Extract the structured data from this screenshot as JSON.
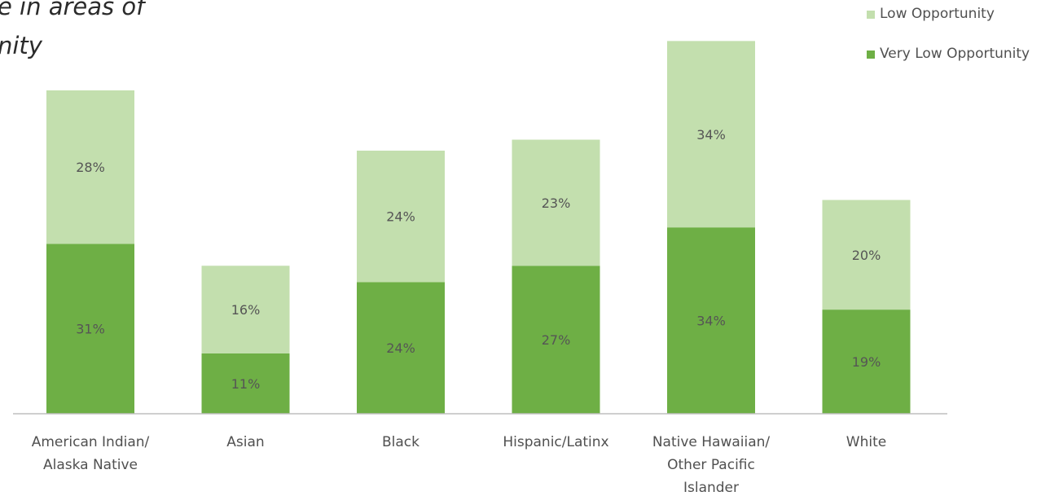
{
  "title_lines": [
    "e in areas of",
    "nity"
  ],
  "colors": {
    "low_opportunity": "#c3dfae",
    "very_low_opportunity": "#6eaf45",
    "axis": "#bfbfbf"
  },
  "chart_data": {
    "type": "bar",
    "stacked": true,
    "title": "e in areas of nity",
    "xlabel": "",
    "ylabel": "",
    "ylim": [
      0,
      70
    ],
    "grid": false,
    "legend_position": "top-right",
    "categories": [
      [
        "American Indian/",
        "Alaska Native"
      ],
      [
        "Asian"
      ],
      [
        "Black"
      ],
      [
        "Hispanic/Latinx"
      ],
      [
        "Native Hawaiian/",
        "Other Pacific",
        "Islander"
      ],
      [
        "White"
      ]
    ],
    "series": [
      {
        "name": "Very Low Opportunity",
        "values": [
          31,
          11,
          24,
          27,
          34,
          19
        ],
        "labels": [
          "31%",
          "11%",
          "24%",
          "27%",
          "34%",
          "19%"
        ]
      },
      {
        "name": "Low Opportunity",
        "values": [
          28,
          16,
          24,
          23,
          34,
          20
        ],
        "labels": [
          "28%",
          "16%",
          "24%",
          "23%",
          "34%",
          "20%"
        ]
      }
    ],
    "legend": [
      "Low Opportunity",
      "Very Low Opportunity"
    ]
  }
}
